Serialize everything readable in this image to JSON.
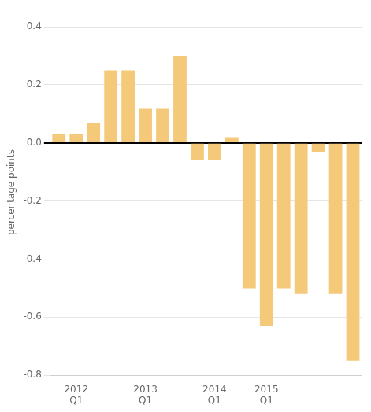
{
  "chart_data": {
    "type": "bar",
    "ylabel": "percentage points",
    "categories": [
      null,
      "2012\nQ1",
      null,
      null,
      null,
      "2013\nQ1",
      null,
      null,
      null,
      "2014\nQ1",
      null,
      null,
      "2015\nQ1",
      null,
      null,
      null,
      null,
      null
    ],
    "values": [
      0.03,
      0.03,
      0.07,
      0.25,
      0.25,
      0.12,
      0.12,
      0.3,
      -0.06,
      -0.06,
      0.02,
      -0.5,
      -0.63,
      -0.5,
      -0.52,
      -0.03,
      -0.52,
      -0.75
    ],
    "color": "#F5C97A",
    "ylim": [
      -0.8,
      0.46
    ],
    "yticks": [
      -0.8,
      -0.6,
      -0.4,
      -0.2,
      {
        "value": 0.0,
        "label": "0.0"
      },
      0.2,
      0.4
    ],
    "grid": true
  }
}
